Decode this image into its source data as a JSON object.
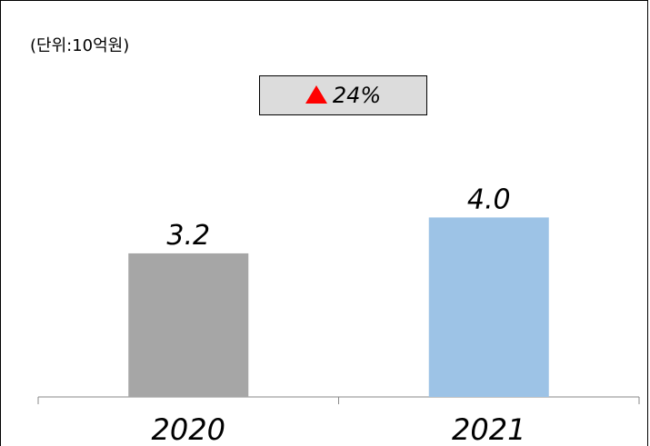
{
  "chart_data": {
    "type": "bar",
    "unit_label": "(단위:10억원)",
    "categories": [
      "2020",
      "2021"
    ],
    "values": [
      3.2,
      4.0
    ],
    "data_labels": [
      "3.2",
      "4.0"
    ],
    "colors": [
      "#a6a6a6",
      "#9dc3e6"
    ],
    "ylim": [
      0,
      5
    ],
    "grid": false,
    "legend": false,
    "annotation": {
      "icon": "triangle-up-icon",
      "icon_color": "#ff0000",
      "text": "24%"
    }
  }
}
